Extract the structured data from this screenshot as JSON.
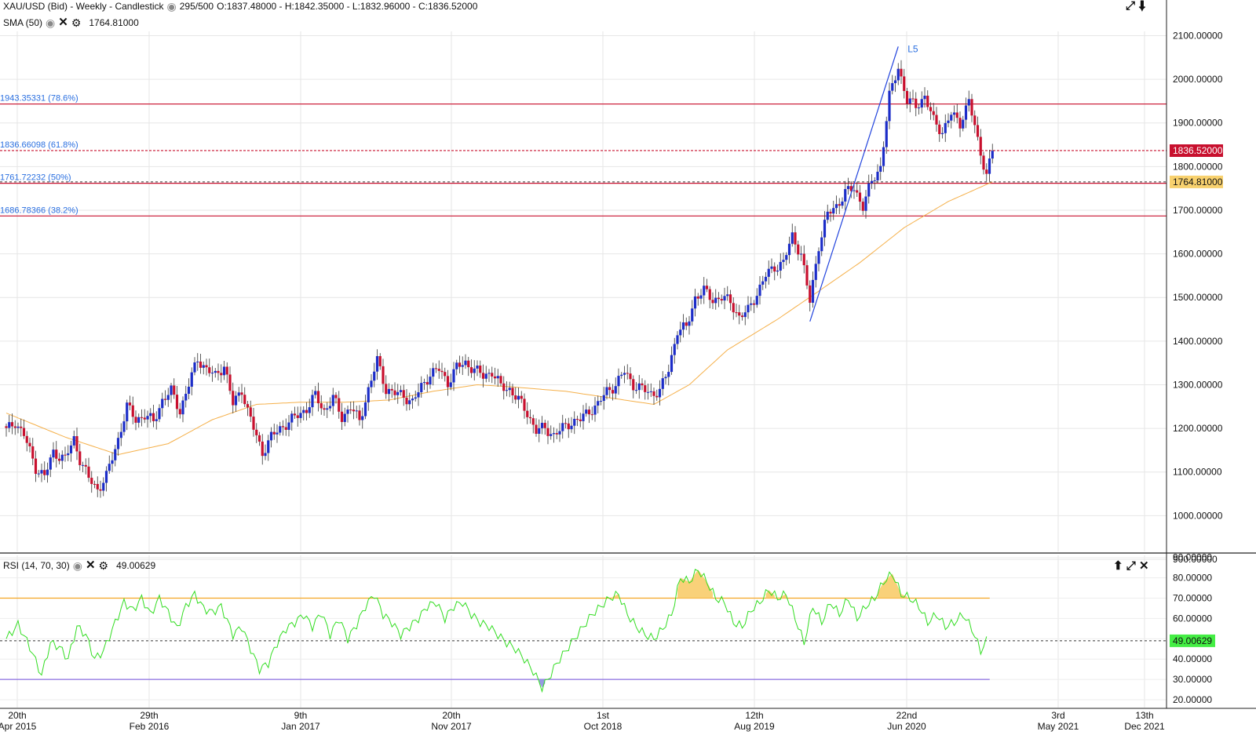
{
  "header": {
    "title": "XAU/USD (Bid) - Weekly - Candlestick",
    "bars": "295/500",
    "ohlc": "O:1837.48000 - H:1842.35000 - L:1832.96000 - C:1836.52000"
  },
  "sma_legend": {
    "label": "SMA (50)",
    "value": "1764.81000"
  },
  "rsi_legend": {
    "label": "RSI (14, 70, 30)",
    "value": "49.00629"
  },
  "icons": {
    "eye": "eye-icon",
    "close": "close-icon",
    "gear": "gear-icon",
    "expand": "expand-icon",
    "collapse": "arrow-down-icon",
    "move_up": "arrow-up-icon"
  },
  "colors": {
    "bull": "#1c2dc8",
    "bear": "#c8102e",
    "sma": "#f5b04a",
    "fib": "#c8102e",
    "trend": "#2244dd",
    "rsi": "#33dd22",
    "rsi_upper": "#f5a623",
    "rsi_lower": "#8b6fe0",
    "fib_text": "#2a6fe0",
    "last_price_bg": "#c8102e",
    "sma_label_bg": "#f8d16e",
    "rsi_label_bg": "#44ee44"
  },
  "chart_data": [
    {
      "type": "candlestick",
      "title": "XAU/USD (Bid) - Weekly - Candlestick",
      "ylim": [
        900,
        2150
      ],
      "yticks": [
        "900.00000",
        "1000.00000",
        "1100.00000",
        "1200.00000",
        "1300.00000",
        "1400.00000",
        "1500.00000",
        "1600.00000",
        "1700.00000",
        "1800.00000",
        "1900.00000",
        "2000.00000",
        "2100.00000"
      ],
      "x_labels": [
        {
          "line1": "20th",
          "line2": "Apr 2015"
        },
        {
          "line1": "29th",
          "line2": "Feb 2016"
        },
        {
          "line1": "9th",
          "line2": "Jan 2017"
        },
        {
          "line1": "20th",
          "line2": "Nov 2017"
        },
        {
          "line1": "1st",
          "line2": "Oct 2018"
        },
        {
          "line1": "12th",
          "line2": "Aug 2019"
        },
        {
          "line1": "22nd",
          "line2": "Jun 2020"
        },
        {
          "line1": "3rd",
          "line2": "May 2021"
        },
        {
          "line1": "13th",
          "line2": "Dec 2021"
        }
      ],
      "close_path": [
        [
          0,
          1195
        ],
        [
          3,
          1215
        ],
        [
          6,
          1185
        ],
        [
          10,
          1110
        ],
        [
          13,
          1090
        ],
        [
          16,
          1145
        ],
        [
          20,
          1130
        ],
        [
          23,
          1175
        ],
        [
          25,
          1130
        ],
        [
          28,
          1085
        ],
        [
          31,
          1060
        ],
        [
          34,
          1090
        ],
        [
          38,
          1175
        ],
        [
          41,
          1250
        ],
        [
          44,
          1220
        ],
        [
          47,
          1230
        ],
        [
          50,
          1215
        ],
        [
          53,
          1265
        ],
        [
          56,
          1285
        ],
        [
          59,
          1240
        ],
        [
          62,
          1300
        ],
        [
          65,
          1360
        ],
        [
          68,
          1335
        ],
        [
          71,
          1320
        ],
        [
          74,
          1345
        ],
        [
          77,
          1255
        ],
        [
          80,
          1290
        ],
        [
          82,
          1240
        ],
        [
          84,
          1200
        ],
        [
          87,
          1145
        ],
        [
          90,
          1180
        ],
        [
          93,
          1200
        ],
        [
          96,
          1215
        ],
        [
          99,
          1230
        ],
        [
          102,
          1245
        ],
        [
          105,
          1275
        ],
        [
          108,
          1240
        ],
        [
          111,
          1270
        ],
        [
          114,
          1225
        ],
        [
          117,
          1250
        ],
        [
          120,
          1215
        ],
        [
          123,
          1290
        ],
        [
          126,
          1355
        ],
        [
          129,
          1290
        ],
        [
          132,
          1280
        ],
        [
          135,
          1275
        ],
        [
          138,
          1260
        ],
        [
          141,
          1295
        ],
        [
          144,
          1325
        ],
        [
          147,
          1335
        ],
        [
          150,
          1305
        ],
        [
          153,
          1340
        ],
        [
          156,
          1350
        ],
        [
          159,
          1335
        ],
        [
          162,
          1320
        ],
        [
          165,
          1330
        ],
        [
          168,
          1295
        ],
        [
          171,
          1290
        ],
        [
          174,
          1265
        ],
        [
          177,
          1235
        ],
        [
          180,
          1195
        ],
        [
          183,
          1200
        ],
        [
          186,
          1185
        ],
        [
          189,
          1200
        ],
        [
          192,
          1215
        ],
        [
          195,
          1220
        ],
        [
          198,
          1240
        ],
        [
          201,
          1255
        ],
        [
          204,
          1285
        ],
        [
          207,
          1300
        ],
        [
          210,
          1330
        ],
        [
          213,
          1300
        ],
        [
          216,
          1290
        ],
        [
          219,
          1280
        ],
        [
          222,
          1285
        ],
        [
          225,
          1335
        ],
        [
          228,
          1425
        ],
        [
          231,
          1430
        ],
        [
          234,
          1500
        ],
        [
          237,
          1515
        ],
        [
          240,
          1495
        ],
        [
          243,
          1500
        ],
        [
          246,
          1490
        ],
        [
          249,
          1455
        ],
        [
          252,
          1470
        ],
        [
          255,
          1510
        ],
        [
          258,
          1550
        ],
        [
          261,
          1570
        ],
        [
          264,
          1580
        ],
        [
          267,
          1640
        ],
        [
          270,
          1600
        ],
        [
          273,
          1490
        ],
        [
          276,
          1620
        ],
        [
          279,
          1690
        ],
        [
          282,
          1710
        ],
        [
          285,
          1740
        ],
        [
          288,
          1750
        ],
        [
          291,
          1710
        ],
        [
          294,
          1765
        ],
        [
          297,
          1800
        ],
        [
          300,
          1960
        ],
        [
          303,
          2030
        ],
        [
          306,
          1950
        ],
        [
          309,
          1940
        ],
        [
          312,
          1960
        ],
        [
          315,
          1905
        ],
        [
          318,
          1880
        ],
        [
          321,
          1920
        ],
        [
          324,
          1900
        ],
        [
          327,
          1950
        ],
        [
          330,
          1860
        ],
        [
          333,
          1780
        ],
        [
          335,
          1837
        ]
      ],
      "last_price": 1836.52,
      "sma_path": [
        [
          0,
          1235
        ],
        [
          20,
          1180
        ],
        [
          38,
          1140
        ],
        [
          55,
          1165
        ],
        [
          70,
          1220
        ],
        [
          85,
          1255
        ],
        [
          100,
          1260
        ],
        [
          115,
          1260
        ],
        [
          130,
          1265
        ],
        [
          145,
          1285
        ],
        [
          160,
          1300
        ],
        [
          172,
          1295
        ],
        [
          190,
          1285
        ],
        [
          205,
          1270
        ],
        [
          220,
          1255
        ],
        [
          232,
          1300
        ],
        [
          245,
          1380
        ],
        [
          262,
          1450
        ],
        [
          275,
          1510
        ],
        [
          290,
          1580
        ],
        [
          305,
          1660
        ],
        [
          320,
          1720
        ],
        [
          335,
          1765
        ]
      ],
      "fib_levels": [
        {
          "value": 1943.35331,
          "label": "1943.35331 (78.6%)",
          "dashed": false
        },
        {
          "value": 1836.66098,
          "label": "1836.66098 (61.8%)",
          "dashed": true
        },
        {
          "value": 1761.72232,
          "label": "1761.72232 (50%)",
          "dashed": false
        },
        {
          "value": 1686.78366,
          "label": "1686.78366 (38.2%)",
          "dashed": false
        }
      ],
      "sma_value": 1764.81,
      "trend_line": {
        "label": "L5",
        "from": [
          273,
          1445
        ],
        "to": [
          303,
          2075
        ]
      }
    },
    {
      "type": "line",
      "title": "RSI (14, 70, 30)",
      "ylim": [
        15,
        92
      ],
      "yticks": [
        "20.00000",
        "30.00000",
        "40.00000",
        "50.00000",
        "60.00000",
        "70.00000",
        "80.00000",
        "90.00000"
      ],
      "upper": 70,
      "lower": 30,
      "current": 49.00629,
      "values_path": [
        [
          0,
          50
        ],
        [
          4,
          57
        ],
        [
          8,
          46
        ],
        [
          12,
          32
        ],
        [
          15,
          48
        ],
        [
          18,
          46
        ],
        [
          21,
          40
        ],
        [
          24,
          56
        ],
        [
          27,
          52
        ],
        [
          30,
          40
        ],
        [
          33,
          44
        ],
        [
          37,
          58
        ],
        [
          40,
          68
        ],
        [
          43,
          64
        ],
        [
          46,
          70
        ],
        [
          49,
          62
        ],
        [
          52,
          70
        ],
        [
          55,
          63
        ],
        [
          58,
          55
        ],
        [
          61,
          66
        ],
        [
          64,
          72
        ],
        [
          67,
          65
        ],
        [
          70,
          63
        ],
        [
          73,
          66
        ],
        [
          77,
          52
        ],
        [
          80,
          56
        ],
        [
          83,
          45
        ],
        [
          86,
          35
        ],
        [
          89,
          38
        ],
        [
          92,
          48
        ],
        [
          95,
          55
        ],
        [
          98,
          58
        ],
        [
          101,
          62
        ],
        [
          104,
          56
        ],
        [
          107,
          63
        ],
        [
          110,
          52
        ],
        [
          113,
          60
        ],
        [
          116,
          50
        ],
        [
          119,
          57
        ],
        [
          122,
          66
        ],
        [
          125,
          72
        ],
        [
          128,
          62
        ],
        [
          131,
          58
        ],
        [
          134,
          52
        ],
        [
          137,
          56
        ],
        [
          140,
          60
        ],
        [
          143,
          66
        ],
        [
          146,
          68
        ],
        [
          149,
          60
        ],
        [
          152,
          66
        ],
        [
          155,
          68
        ],
        [
          158,
          62
        ],
        [
          161,
          58
        ],
        [
          164,
          56
        ],
        [
          167,
          52
        ],
        [
          170,
          48
        ],
        [
          173,
          45
        ],
        [
          176,
          40
        ],
        [
          179,
          34
        ],
        [
          182,
          26
        ],
        [
          184,
          30
        ],
        [
          187,
          38
        ],
        [
          190,
          44
        ],
        [
          193,
          50
        ],
        [
          196,
          56
        ],
        [
          199,
          62
        ],
        [
          202,
          66
        ],
        [
          205,
          70
        ],
        [
          208,
          72
        ],
        [
          211,
          62
        ],
        [
          214,
          56
        ],
        [
          217,
          52
        ],
        [
          220,
          50
        ],
        [
          223,
          55
        ],
        [
          226,
          62
        ],
        [
          229,
          80
        ],
        [
          232,
          78
        ],
        [
          235,
          84
        ],
        [
          238,
          78
        ],
        [
          241,
          70
        ],
        [
          244,
          68
        ],
        [
          247,
          58
        ],
        [
          250,
          56
        ],
        [
          253,
          64
        ],
        [
          256,
          68
        ],
        [
          259,
          74
        ],
        [
          262,
          70
        ],
        [
          265,
          72
        ],
        [
          268,
          60
        ],
        [
          271,
          48
        ],
        [
          274,
          66
        ],
        [
          277,
          58
        ],
        [
          280,
          68
        ],
        [
          283,
          62
        ],
        [
          286,
          70
        ],
        [
          289,
          60
        ],
        [
          292,
          66
        ],
        [
          295,
          70
        ],
        [
          298,
          78
        ],
        [
          301,
          82
        ],
        [
          304,
          72
        ],
        [
          307,
          70
        ],
        [
          310,
          66
        ],
        [
          313,
          58
        ],
        [
          316,
          62
        ],
        [
          319,
          56
        ],
        [
          322,
          58
        ],
        [
          325,
          62
        ],
        [
          328,
          55
        ],
        [
          331,
          44
        ],
        [
          333,
          49
        ]
      ]
    }
  ]
}
